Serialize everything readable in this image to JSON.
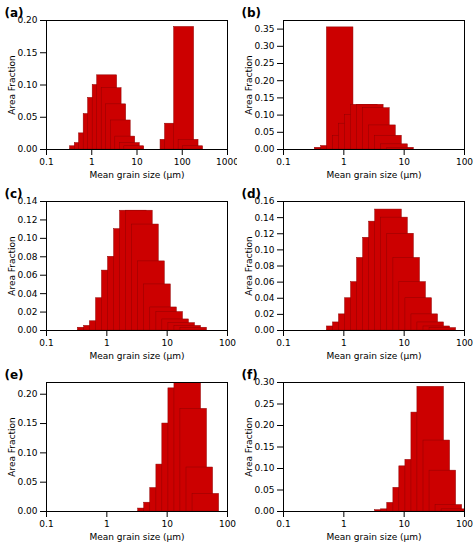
{
  "chart_data": [
    {
      "type": "bar",
      "title": "(a)",
      "xlabel": "Mean grain size (μm)",
      "ylabel": "Area Fraction",
      "log": "x",
      "color": "#cc0000",
      "x": [
        0.55,
        0.7,
        0.87,
        1.1,
        1.38,
        1.74,
        2.19,
        2.75,
        3.47,
        4.37,
        5.5,
        6.92,
        8.71,
        55.0,
        69.2,
        110.0,
        138.0,
        174.0
      ],
      "values": [
        0.005,
        0.01,
        0.025,
        0.055,
        0.08,
        0.1,
        0.115,
        0.095,
        0.07,
        0.045,
        0.02,
        0.01,
        0.005,
        0.015,
        0.04,
        0.19,
        0.015,
        0.005
      ],
      "xlim": [
        0.1,
        1000
      ],
      "xticks": [
        0.1,
        1,
        10,
        100,
        1000
      ],
      "ylim": [
        0,
        0.2
      ],
      "yticks": [
        {
          "value": 0.0,
          "label": "0.00"
        },
        {
          "value": 0.05,
          "label": "0.05"
        },
        {
          "value": 0.1,
          "label": "0.10"
        },
        {
          "value": 0.15,
          "label": "0.15"
        },
        {
          "value": 0.2,
          "label": "0.20"
        }
      ]
    },
    {
      "type": "bar",
      "title": "(b)",
      "xlabel": "Mean grain size (μm)",
      "ylabel": "Area Fraction",
      "log": "x",
      "color": "#cc0000",
      "x": [
        0.55,
        0.7,
        0.87,
        1.1,
        1.38,
        1.74,
        2.19,
        2.75,
        3.47,
        4.37,
        5.5,
        6.92,
        8.71
      ],
      "values": [
        0.005,
        0.01,
        0.355,
        0.04,
        0.075,
        0.1,
        0.13,
        0.13,
        0.12,
        0.07,
        0.04,
        0.015,
        0.005
      ],
      "xlim": [
        0.1,
        100
      ],
      "xticks": [
        0.1,
        1,
        10,
        100
      ],
      "ylim": [
        0,
        0.375
      ],
      "yticks": [
        {
          "value": 0.0,
          "label": "0.00"
        },
        {
          "value": 0.05,
          "label": "0.05"
        },
        {
          "value": 0.1,
          "label": "0.10"
        },
        {
          "value": 0.15,
          "label": "0.15"
        },
        {
          "value": 0.2,
          "label": "0.20"
        },
        {
          "value": 0.25,
          "label": "0.25"
        },
        {
          "value": 0.3,
          "label": "0.30"
        },
        {
          "value": 0.35,
          "label": "0.35"
        }
      ]
    },
    {
      "type": "bar",
      "title": "(c)",
      "xlabel": "Mean grain size (μm)",
      "ylabel": "Area Fraction",
      "log": "x",
      "color": "#cc0000",
      "x": [
        0.55,
        0.7,
        0.87,
        1.1,
        1.38,
        1.74,
        2.19,
        2.75,
        3.47,
        4.37,
        5.5,
        6.92,
        8.71,
        11.0,
        13.8,
        17.4,
        21.9,
        27.5
      ],
      "values": [
        0.003,
        0.005,
        0.01,
        0.035,
        0.065,
        0.08,
        0.11,
        0.13,
        0.13,
        0.115,
        0.075,
        0.05,
        0.025,
        0.02,
        0.012,
        0.008,
        0.005,
        0.003
      ],
      "xlim": [
        0.1,
        100
      ],
      "xticks": [
        0.1,
        1,
        10,
        100
      ],
      "ylim": [
        0,
        0.14
      ],
      "yticks": [
        {
          "value": 0.0,
          "label": "0.00"
        },
        {
          "value": 0.02,
          "label": "0.02"
        },
        {
          "value": 0.04,
          "label": "0.04"
        },
        {
          "value": 0.06,
          "label": "0.06"
        },
        {
          "value": 0.08,
          "label": "0.08"
        },
        {
          "value": 0.1,
          "label": "0.10"
        },
        {
          "value": 0.12,
          "label": "0.12"
        },
        {
          "value": 0.14,
          "label": "0.14"
        }
      ]
    },
    {
      "type": "bar",
      "title": "(d)",
      "xlabel": "Mean grain size (μm)",
      "ylabel": "Area Fraction",
      "log": "x",
      "color": "#cc0000",
      "x": [
        0.87,
        1.1,
        1.38,
        1.74,
        2.19,
        2.75,
        3.47,
        4.37,
        5.5,
        6.92,
        8.71,
        11.0,
        13.8,
        17.4,
        21.9,
        27.5,
        34.7,
        43.7
      ],
      "values": [
        0.005,
        0.01,
        0.02,
        0.04,
        0.06,
        0.09,
        0.115,
        0.135,
        0.15,
        0.14,
        0.12,
        0.09,
        0.06,
        0.04,
        0.02,
        0.01,
        0.005,
        0.003
      ],
      "xlim": [
        0.1,
        100
      ],
      "xticks": [
        0.1,
        1,
        10,
        100
      ],
      "ylim": [
        0,
        0.16
      ],
      "yticks": [
        {
          "value": 0.0,
          "label": "0.00"
        },
        {
          "value": 0.02,
          "label": "0.02"
        },
        {
          "value": 0.04,
          "label": "0.04"
        },
        {
          "value": 0.06,
          "label": "0.06"
        },
        {
          "value": 0.08,
          "label": "0.08"
        },
        {
          "value": 0.1,
          "label": "0.10"
        },
        {
          "value": 0.12,
          "label": "0.12"
        },
        {
          "value": 0.14,
          "label": "0.14"
        },
        {
          "value": 0.16,
          "label": "0.16"
        }
      ]
    },
    {
      "type": "bar",
      "title": "(e)",
      "xlabel": "Mean grain size (μm)",
      "ylabel": "Area Fraction",
      "log": "x",
      "color": "#cc0000",
      "x": [
        5.5,
        6.92,
        8.71,
        11.0,
        13.8,
        17.4,
        21.9,
        27.5,
        34.7,
        43.7
      ],
      "values": [
        0.005,
        0.015,
        0.04,
        0.08,
        0.15,
        0.21,
        0.22,
        0.175,
        0.075,
        0.03
      ],
      "xlim": [
        0.1,
        100
      ],
      "xticks": [
        0.1,
        1,
        10,
        100
      ],
      "ylim": [
        0,
        0.22
      ],
      "yticks": [
        {
          "value": 0.0,
          "label": "0.00"
        },
        {
          "value": 0.05,
          "label": "0.05"
        },
        {
          "value": 0.1,
          "label": "0.10"
        },
        {
          "value": 0.15,
          "label": "0.15"
        },
        {
          "value": 0.2,
          "label": "0.20"
        }
      ]
    },
    {
      "type": "bar",
      "title": "(f)",
      "xlabel": "Mean grain size (μm)",
      "ylabel": "Area Fraction",
      "log": "x",
      "color": "#cc0000",
      "x": [
        5.5,
        6.92,
        8.71,
        11.0,
        13.8,
        17.4,
        21.9,
        27.5,
        34.7,
        43.7,
        55.0,
        69.2
      ],
      "values": [
        0.003,
        0.005,
        0.02,
        0.055,
        0.105,
        0.12,
        0.23,
        0.29,
        0.165,
        0.095,
        0.015,
        0.005
      ],
      "xlim": [
        0.1,
        100
      ],
      "xticks": [
        0.1,
        1,
        10,
        100
      ],
      "ylim": [
        0,
        0.3
      ],
      "yticks": [
        {
          "value": 0.0,
          "label": "0.00"
        },
        {
          "value": 0.05,
          "label": "0.05"
        },
        {
          "value": 0.1,
          "label": "0.10"
        },
        {
          "value": 0.15,
          "label": "0.15"
        },
        {
          "value": 0.2,
          "label": "0.20"
        },
        {
          "value": 0.25,
          "label": "0.25"
        },
        {
          "value": 0.3,
          "label": "0.30"
        }
      ]
    }
  ]
}
